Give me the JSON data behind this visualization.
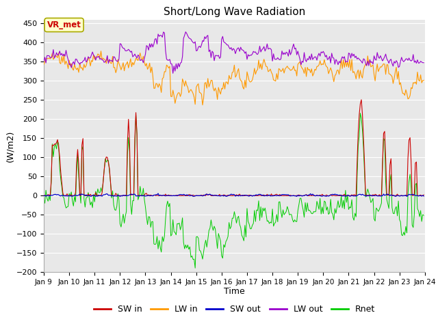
{
  "title": "Short/Long Wave Radiation",
  "xlabel": "Time",
  "ylabel": "(W/m2)",
  "ylim": [
    -200,
    460
  ],
  "yticks": [
    -200,
    -150,
    -100,
    -50,
    0,
    50,
    100,
    150,
    200,
    250,
    300,
    350,
    400,
    450
  ],
  "xlim": [
    0,
    360
  ],
  "xtick_labels": [
    "Jan 9",
    "Jan 10",
    "Jan 11",
    "Jan 12",
    "Jan 13",
    "Jan 14",
    "Jan 15",
    "Jan 16",
    "Jan 17",
    "Jan 18",
    "Jan 19",
    "Jan 20",
    "Jan 21",
    "Jan 22",
    "Jan 23",
    "Jan 24"
  ],
  "xtick_positions": [
    0,
    24,
    48,
    72,
    96,
    120,
    144,
    168,
    192,
    216,
    240,
    264,
    288,
    312,
    336,
    360
  ],
  "annotation_text": "VR_met",
  "annotation_color": "#cc0000",
  "annotation_bg": "#ffffcc",
  "colors": {
    "SW_in": "#cc0000",
    "LW_in": "#ff9900",
    "SW_out": "#0000cc",
    "LW_out": "#9900cc",
    "Rnet": "#00cc00"
  },
  "plot_bg": "#e8e8e8",
  "grid_color": "#ffffff"
}
